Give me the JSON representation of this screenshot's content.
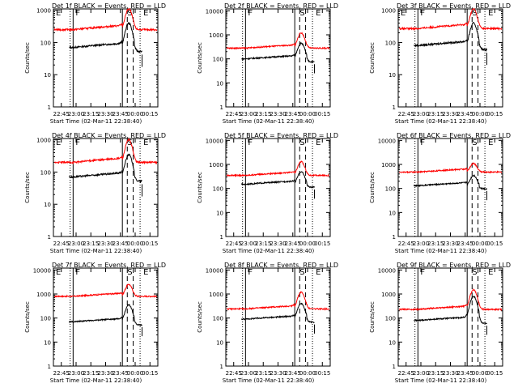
{
  "colors": {
    "events": "#000000",
    "lld": "#ff0000",
    "background": "#ffffff"
  },
  "chart_data": [
    {
      "type": "line",
      "title": "Det 1f BLACK = Events, RED = LLD",
      "ylabel": "Counts/sec",
      "xlabel": "Start Time (02-Mar-11 22:38:40)",
      "xticks": [
        "22:45",
        "23:00",
        "23:15",
        "23:30",
        "23:45",
        "00:00",
        "00:15"
      ],
      "yticks": [
        "1",
        "10",
        "100",
        "1000"
      ],
      "ylim": [
        1,
        1100
      ],
      "y_scale": "log",
      "markers": [
        "E",
        "F",
        "S",
        "E"
      ],
      "series": [
        {
          "name": "Events",
          "color": "#000000",
          "level": 70,
          "peak": 400
        },
        {
          "name": "LLD",
          "color": "#ff0000",
          "level": 250,
          "peak": 1100
        }
      ]
    },
    {
      "type": "line",
      "title": "Det 2f BLACK = Events, RED = LLD",
      "ylabel": "Counts/sec",
      "xlabel": "Start Time (02-Mar-11 22:38:40)",
      "xticks": [
        "22:45",
        "23:00",
        "23:15",
        "23:30",
        "23:45",
        "00:00",
        "00:15"
      ],
      "yticks": [
        "1",
        "10",
        "100",
        "1000",
        "10000"
      ],
      "ylim": [
        1,
        12000
      ],
      "y_scale": "log",
      "markers": [
        "F",
        "S",
        "E"
      ],
      "series": [
        {
          "name": "Events",
          "color": "#000000",
          "level": 100,
          "peak": 450
        },
        {
          "name": "LLD",
          "color": "#ff0000",
          "level": 280,
          "peak": 1200
        }
      ]
    },
    {
      "type": "line",
      "title": "Det 3f BLACK = Events, RED = LLD",
      "ylabel": "Counts/sec",
      "xlabel": "Start Time (02-Mar-11 22:38:40)",
      "xticks": [
        "22:45",
        "23:00",
        "23:15",
        "23:30",
        "23:45",
        "00:00",
        "00:15"
      ],
      "yticks": [
        "1",
        "10",
        "100",
        "1000"
      ],
      "ylim": [
        1,
        1100
      ],
      "y_scale": "log",
      "markers": [
        "E",
        "F",
        "S",
        "E"
      ],
      "series": [
        {
          "name": "Events",
          "color": "#000000",
          "level": 80,
          "peak": 400
        },
        {
          "name": "LLD",
          "color": "#ff0000",
          "level": 270,
          "peak": 1100
        }
      ]
    },
    {
      "type": "line",
      "title": "Det 4f BLACK = Events, RED = LLD",
      "ylabel": "Counts/sec",
      "xlabel": "Start Time (02-Mar-11 22:38:40)",
      "xticks": [
        "22:45",
        "23:00",
        "23:15",
        "23:30",
        "23:45",
        "00:00",
        "00:15"
      ],
      "yticks": [
        "1",
        "10",
        "100",
        "1000"
      ],
      "ylim": [
        1,
        1100
      ],
      "y_scale": "log",
      "markers": [
        "E",
        "F",
        "S",
        "E"
      ],
      "series": [
        {
          "name": "Events",
          "color": "#000000",
          "level": 70,
          "peak": 350
        },
        {
          "name": "LLD",
          "color": "#ff0000",
          "level": 200,
          "peak": 1000
        }
      ]
    },
    {
      "type": "line",
      "title": "Det 5f BLACK = Events, RED = LLD",
      "ylabel": "Counts/sec",
      "xlabel": "Start Time (02-Mar-11 22:38:40)",
      "xticks": [
        "22:45",
        "23:00",
        "23:15",
        "23:30",
        "23:45",
        "00:00",
        "00:15"
      ],
      "yticks": [
        "1",
        "10",
        "100",
        "1000",
        "10000"
      ],
      "ylim": [
        1,
        12000
      ],
      "y_scale": "log",
      "markers": [
        "F",
        "S",
        "E"
      ],
      "series": [
        {
          "name": "Events",
          "color": "#000000",
          "level": 150,
          "peak": 500
        },
        {
          "name": "LLD",
          "color": "#ff0000",
          "level": 350,
          "peak": 1300
        }
      ]
    },
    {
      "type": "line",
      "title": "Det 6f BLACK = Events, RED = LLD",
      "ylabel": "Counts/sec",
      "xlabel": "Start Time (02-Mar-11 22:38:40)",
      "xticks": [
        "22:45",
        "23:00",
        "23:15",
        "23:30",
        "23:45",
        "00:00",
        "00:15"
      ],
      "yticks": [
        "1",
        "10",
        "100",
        "1000",
        "10000"
      ],
      "ylim": [
        1,
        12000
      ],
      "y_scale": "log",
      "markers": [
        "F",
        "S",
        "E"
      ],
      "series": [
        {
          "name": "Events",
          "color": "#000000",
          "level": 130,
          "peak": 350
        },
        {
          "name": "LLD",
          "color": "#ff0000",
          "level": 480,
          "peak": 1100
        }
      ]
    },
    {
      "type": "line",
      "title": "Det 7f BLACK = Events, RED = LLD",
      "ylabel": "Counts/sec",
      "xlabel": "Start Time (02-Mar-11 22:38:40)",
      "xticks": [
        "22:45",
        "23:00",
        "23:15",
        "23:30",
        "23:45",
        "00:00",
        "00:15"
      ],
      "yticks": [
        "1",
        "10",
        "100",
        "1000",
        "10000"
      ],
      "ylim": [
        1,
        12000
      ],
      "y_scale": "log",
      "markers": [
        "E",
        "F",
        "S",
        "E"
      ],
      "series": [
        {
          "name": "Events",
          "color": "#000000",
          "level": 70,
          "peak": 350
        },
        {
          "name": "LLD",
          "color": "#ff0000",
          "level": 800,
          "peak": 2500
        }
      ]
    },
    {
      "type": "line",
      "title": "Det 8f BLACK = Events, RED = LLD",
      "ylabel": "Counts/sec",
      "xlabel": "Start Time (02-Mar-11 22:38:40)",
      "xticks": [
        "22:45",
        "23:00",
        "23:15",
        "23:30",
        "23:45",
        "00:00",
        "00:15"
      ],
      "yticks": [
        "1",
        "10",
        "100",
        "1000",
        "10000"
      ],
      "ylim": [
        1,
        12000
      ],
      "y_scale": "log",
      "markers": [
        "F",
        "S",
        "E"
      ],
      "series": [
        {
          "name": "Events",
          "color": "#000000",
          "level": 90,
          "peak": 400
        },
        {
          "name": "LLD",
          "color": "#ff0000",
          "level": 240,
          "peak": 1200
        }
      ]
    },
    {
      "type": "line",
      "title": "Det 9f BLACK = Events, RED = LLD",
      "ylabel": "Counts/sec",
      "xlabel": "Start Time (02-Mar-11 22:38:40)",
      "xticks": [
        "22:45",
        "23:00",
        "23:15",
        "23:30",
        "23:45",
        "00:00",
        "00:15"
      ],
      "yticks": [
        "1",
        "10",
        "100",
        "1000",
        "10000"
      ],
      "ylim": [
        1,
        12000
      ],
      "y_scale": "log",
      "markers": [
        "F",
        "S",
        "E"
      ],
      "series": [
        {
          "name": "Events",
          "color": "#000000",
          "level": 80,
          "peak": 800
        },
        {
          "name": "LLD",
          "color": "#ff0000",
          "level": 230,
          "peak": 1500
        }
      ]
    }
  ]
}
